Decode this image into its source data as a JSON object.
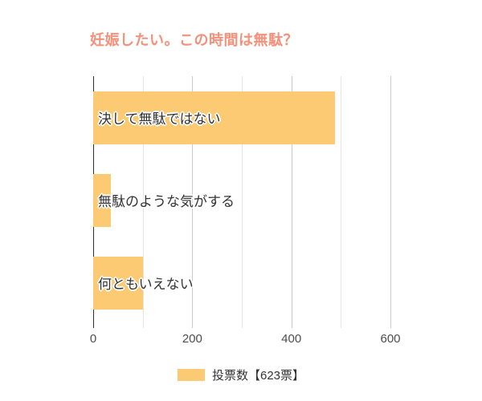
{
  "title": {
    "text": "妊娠したい。この時間は無駄？",
    "color": "#f5907a"
  },
  "chart_data": {
    "type": "bar",
    "orientation": "horizontal",
    "title": "妊娠したい。この時間は無駄？",
    "categories": [
      "決して無駄ではない",
      "無駄のような気がする",
      "何ともいえない"
    ],
    "values": [
      488,
      35,
      100
    ],
    "series": [
      {
        "name": "投票数【623票】",
        "values": [
          488,
          35,
          100
        ]
      }
    ],
    "total_votes": 623,
    "xlim": [
      0,
      600
    ],
    "xtick_labels": [
      "0",
      "200",
      "400",
      "600"
    ],
    "xtick_values": [
      0,
      200,
      400,
      600
    ],
    "gridline_values": [
      0,
      100,
      200,
      300,
      400,
      500,
      600
    ],
    "grid": true,
    "legend": {
      "label": "投票数【623票】",
      "position": "bottom-center"
    },
    "bar_color": "#fcca73",
    "label_color": "#333333",
    "axis_line_color": "#2f2f2f"
  }
}
